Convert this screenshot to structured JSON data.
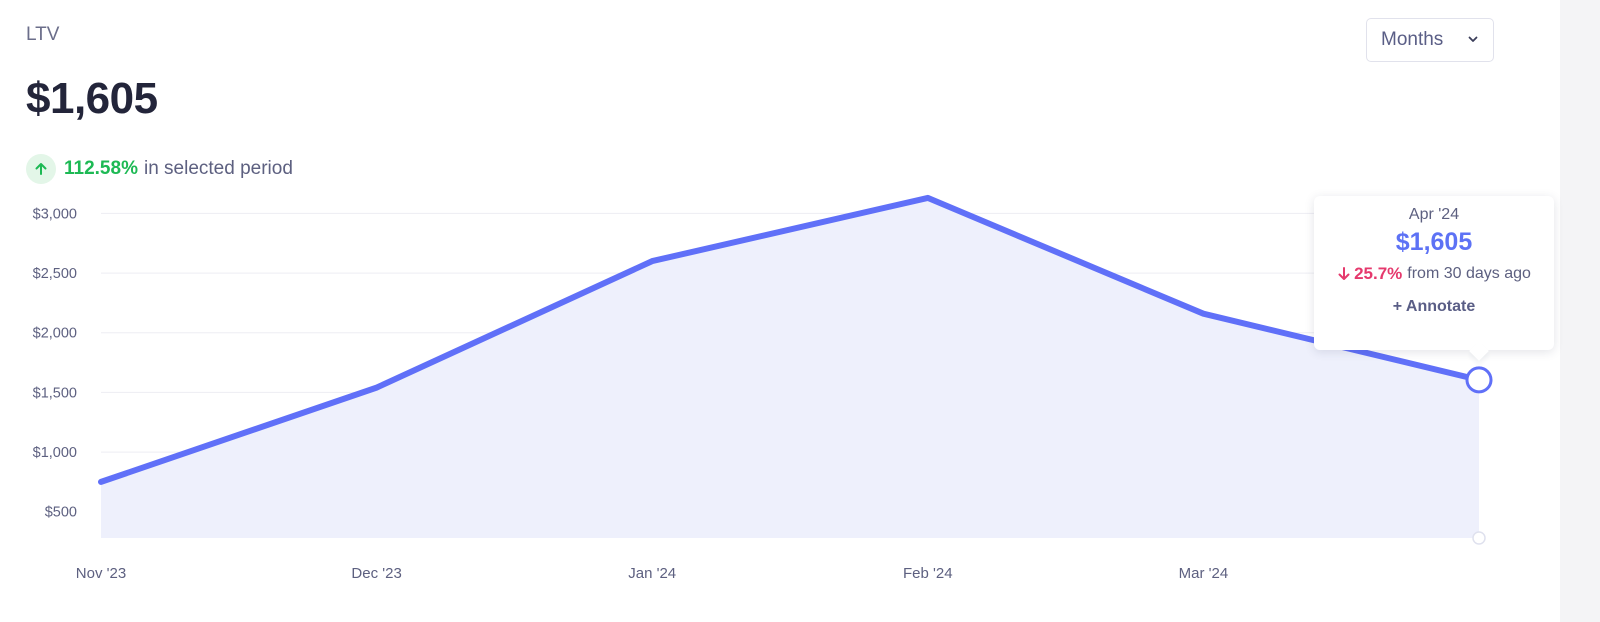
{
  "metric": {
    "label": "LTV",
    "value": "$1,605",
    "change_pct": "112.58%",
    "change_text": "in selected period"
  },
  "period_select": {
    "value": "Months"
  },
  "chart_data": {
    "type": "area",
    "x": [
      "Nov '23",
      "Dec '23",
      "Jan '24",
      "Feb '24",
      "Mar '24",
      "Apr '24"
    ],
    "x_tick_labels": [
      "Nov '23",
      "Dec '23",
      "Jan '24",
      "Feb '24",
      "Mar '24"
    ],
    "series": [
      {
        "values": [
          750,
          1540,
          2600,
          3130,
          2160,
          1605
        ]
      }
    ],
    "y_ticks": [
      500,
      1000,
      1500,
      2000,
      2500,
      3000
    ],
    "y_tick_labels": [
      "$500",
      "$1,000",
      "$1,500",
      "$2,000",
      "$2,500",
      "$3,000"
    ],
    "ylim": [
      280,
      3280
    ],
    "grid": true,
    "colors": {
      "line": "#6070f8",
      "fill": "#eef0fc"
    }
  },
  "tooltip": {
    "date": "Apr '24",
    "value": "$1,605",
    "change_pct": "25.7%",
    "change_text": "from 30 days ago",
    "annotate_label": "+ Annotate"
  }
}
